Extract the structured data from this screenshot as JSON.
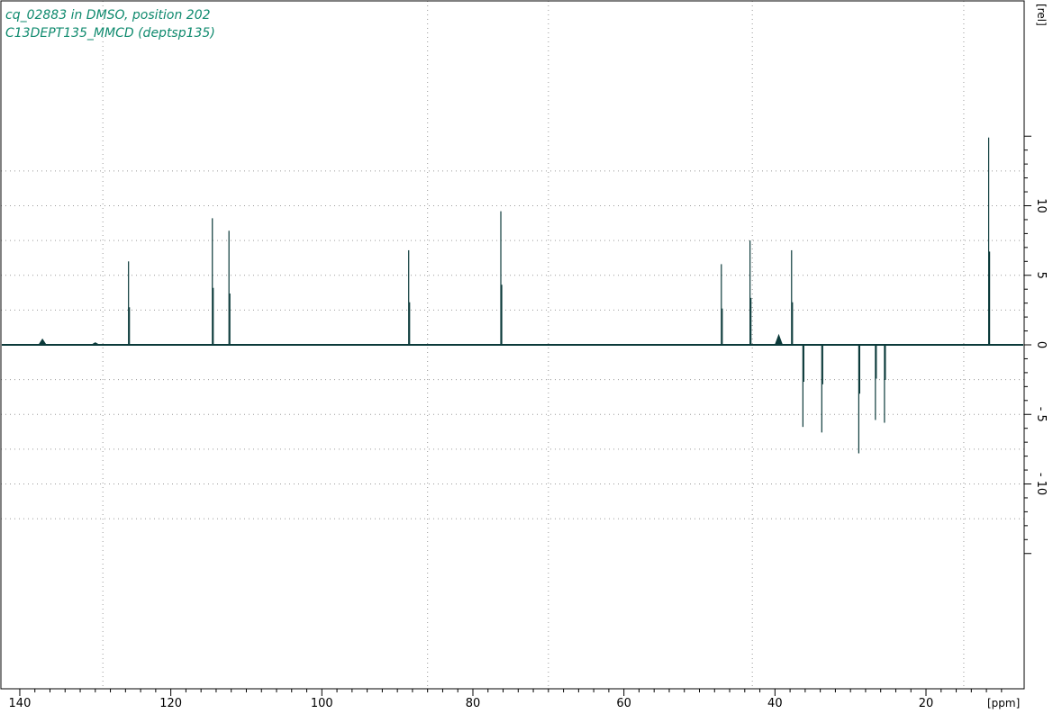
{
  "title": {
    "line1": "cq_02883 in DMSO, position 202",
    "line2": "C13DEPT135_MMCD (deptsp135)"
  },
  "colors": {
    "title": "#0f8a6e",
    "trace": "#0b3a3a",
    "grid": "#9a9a9a",
    "frame": "#000000"
  },
  "chart_data": {
    "type": "line",
    "xlabel": "[ppm]",
    "ylabel": "[rel]",
    "xlim": [
      142.5,
      7
    ],
    "ylim": [
      -15.5,
      15.5
    ],
    "x_axis_reversed": true,
    "grid": true,
    "x_ticks": [
      140,
      120,
      100,
      80,
      60,
      40,
      20
    ],
    "x_tick_labels": [
      "140",
      "120",
      "100",
      "80",
      "60",
      "40",
      "20"
    ],
    "x_grid": [
      129,
      86,
      70,
      43,
      15
    ],
    "y_ticks": [
      10,
      5,
      0,
      -5,
      -10
    ],
    "y_tick_labels": [
      "10",
      "5",
      "0",
      "- 5",
      "- 10"
    ],
    "y_grid": [
      10,
      5,
      0,
      -5,
      -10
    ],
    "series": [
      {
        "peaks": [
          {
            "ppm": 137.0,
            "intensity": 0.4
          },
          {
            "ppm": 130.0,
            "intensity": 0.15
          },
          {
            "ppm": 125.6,
            "intensity": 6.0
          },
          {
            "ppm": 114.5,
            "intensity": 9.1
          },
          {
            "ppm": 112.3,
            "intensity": 8.2
          },
          {
            "ppm": 88.5,
            "intensity": 6.8
          },
          {
            "ppm": 76.3,
            "intensity": 9.6
          },
          {
            "ppm": 47.1,
            "intensity": 5.8
          },
          {
            "ppm": 43.3,
            "intensity": 7.5
          },
          {
            "ppm": 39.5,
            "intensity": 0.7
          },
          {
            "ppm": 37.8,
            "intensity": 6.8
          },
          {
            "ppm": 36.3,
            "intensity": -5.9
          },
          {
            "ppm": 33.8,
            "intensity": -6.3
          },
          {
            "ppm": 28.9,
            "intensity": -7.8
          },
          {
            "ppm": 26.7,
            "intensity": -5.4
          },
          {
            "ppm": 25.5,
            "intensity": -5.6
          },
          {
            "ppm": 11.7,
            "intensity": 14.9
          }
        ]
      }
    ]
  }
}
